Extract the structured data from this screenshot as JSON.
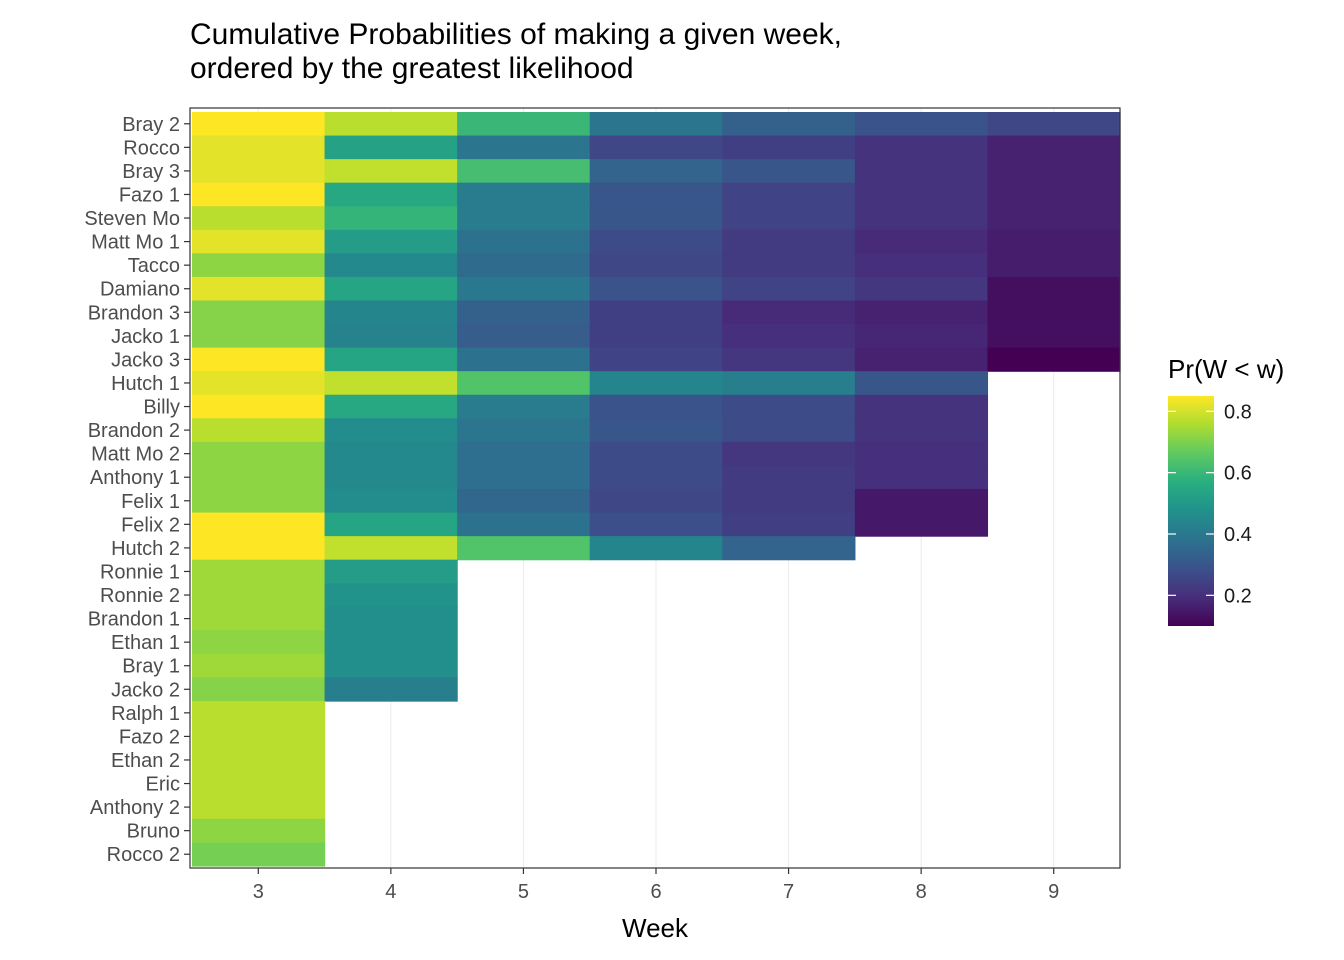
{
  "chart_data": {
    "type": "heatmap",
    "title": "Cumulative Probabilities of making a given week,\nordered by the greatest likelihood",
    "xlabel": "Week",
    "ylabel": "",
    "legend_title": "Pr(W < w)",
    "legend_position": "right",
    "color_range": [
      0.1,
      0.85
    ],
    "legend_ticks": [
      "0.2",
      "0.4",
      "0.6",
      "0.8"
    ],
    "legend_tick_values": [
      0.2,
      0.4,
      0.6,
      0.8
    ],
    "grid": true,
    "x": [
      "3",
      "4",
      "5",
      "6",
      "7",
      "8",
      "9"
    ],
    "y": [
      "Bray 2",
      "Rocco",
      "Bray 3",
      "Fazo 1",
      "Steven Mo",
      "Matt Mo 1",
      "Tacco",
      "Damiano",
      "Brandon 3",
      "Jacko 1",
      "Jacko 3",
      "Hutch 1",
      "Billy",
      "Brandon 2",
      "Matt Mo 2",
      "Anthony 1",
      "Felix 1",
      "Felix 2",
      "Hutch 2",
      "Ronnie 1",
      "Ronnie 2",
      "Brandon 1",
      "Ethan 1",
      "Bray 1",
      "Jacko 2",
      "Ralph 1",
      "Fazo 2",
      "Ethan 2",
      "Eric",
      "Anthony 2",
      "Bruno",
      "Rocco 2"
    ],
    "values": [
      [
        0.85,
        0.77,
        0.6,
        0.39,
        0.33,
        0.29,
        0.26
      ],
      [
        0.82,
        0.53,
        0.39,
        0.26,
        0.24,
        0.21,
        0.17
      ],
      [
        0.82,
        0.78,
        0.62,
        0.34,
        0.3,
        0.21,
        0.17
      ],
      [
        0.85,
        0.55,
        0.41,
        0.3,
        0.25,
        0.21,
        0.17
      ],
      [
        0.77,
        0.59,
        0.41,
        0.3,
        0.25,
        0.21,
        0.17
      ],
      [
        0.82,
        0.51,
        0.38,
        0.27,
        0.23,
        0.19,
        0.16
      ],
      [
        0.72,
        0.45,
        0.36,
        0.26,
        0.23,
        0.2,
        0.16
      ],
      [
        0.82,
        0.54,
        0.4,
        0.29,
        0.25,
        0.22,
        0.13
      ],
      [
        0.71,
        0.44,
        0.33,
        0.24,
        0.19,
        0.17,
        0.13
      ],
      [
        0.71,
        0.43,
        0.32,
        0.24,
        0.2,
        0.18,
        0.13
      ],
      [
        0.85,
        0.54,
        0.38,
        0.25,
        0.22,
        0.17,
        0.1
      ],
      [
        0.82,
        0.78,
        0.64,
        0.44,
        0.42,
        0.3,
        null
      ],
      [
        0.85,
        0.55,
        0.41,
        0.29,
        0.27,
        0.21,
        null
      ],
      [
        0.77,
        0.46,
        0.39,
        0.3,
        0.27,
        0.21,
        null
      ],
      [
        0.72,
        0.45,
        0.37,
        0.27,
        0.22,
        0.2,
        null
      ],
      [
        0.72,
        0.45,
        0.37,
        0.27,
        0.23,
        0.2,
        null
      ],
      [
        0.72,
        0.46,
        0.35,
        0.26,
        0.23,
        0.15,
        null
      ],
      [
        0.85,
        0.54,
        0.38,
        0.28,
        0.24,
        0.15,
        null
      ],
      [
        0.85,
        0.78,
        0.64,
        0.44,
        0.34,
        null,
        null
      ],
      [
        0.74,
        0.51,
        null,
        null,
        null,
        null,
        null
      ],
      [
        0.74,
        0.48,
        null,
        null,
        null,
        null,
        null
      ],
      [
        0.74,
        0.47,
        null,
        null,
        null,
        null,
        null
      ],
      [
        0.72,
        0.47,
        null,
        null,
        null,
        null,
        null
      ],
      [
        0.74,
        0.47,
        null,
        null,
        null,
        null,
        null
      ],
      [
        0.71,
        0.42,
        null,
        null,
        null,
        null,
        null
      ],
      [
        0.77,
        null,
        null,
        null,
        null,
        null,
        null
      ],
      [
        0.77,
        null,
        null,
        null,
        null,
        null,
        null
      ],
      [
        0.77,
        null,
        null,
        null,
        null,
        null,
        null
      ],
      [
        0.77,
        null,
        null,
        null,
        null,
        null,
        null
      ],
      [
        0.77,
        null,
        null,
        null,
        null,
        null,
        null
      ],
      [
        0.72,
        null,
        null,
        null,
        null,
        null,
        null
      ],
      [
        0.69,
        null,
        null,
        null,
        null,
        null,
        null
      ]
    ]
  }
}
